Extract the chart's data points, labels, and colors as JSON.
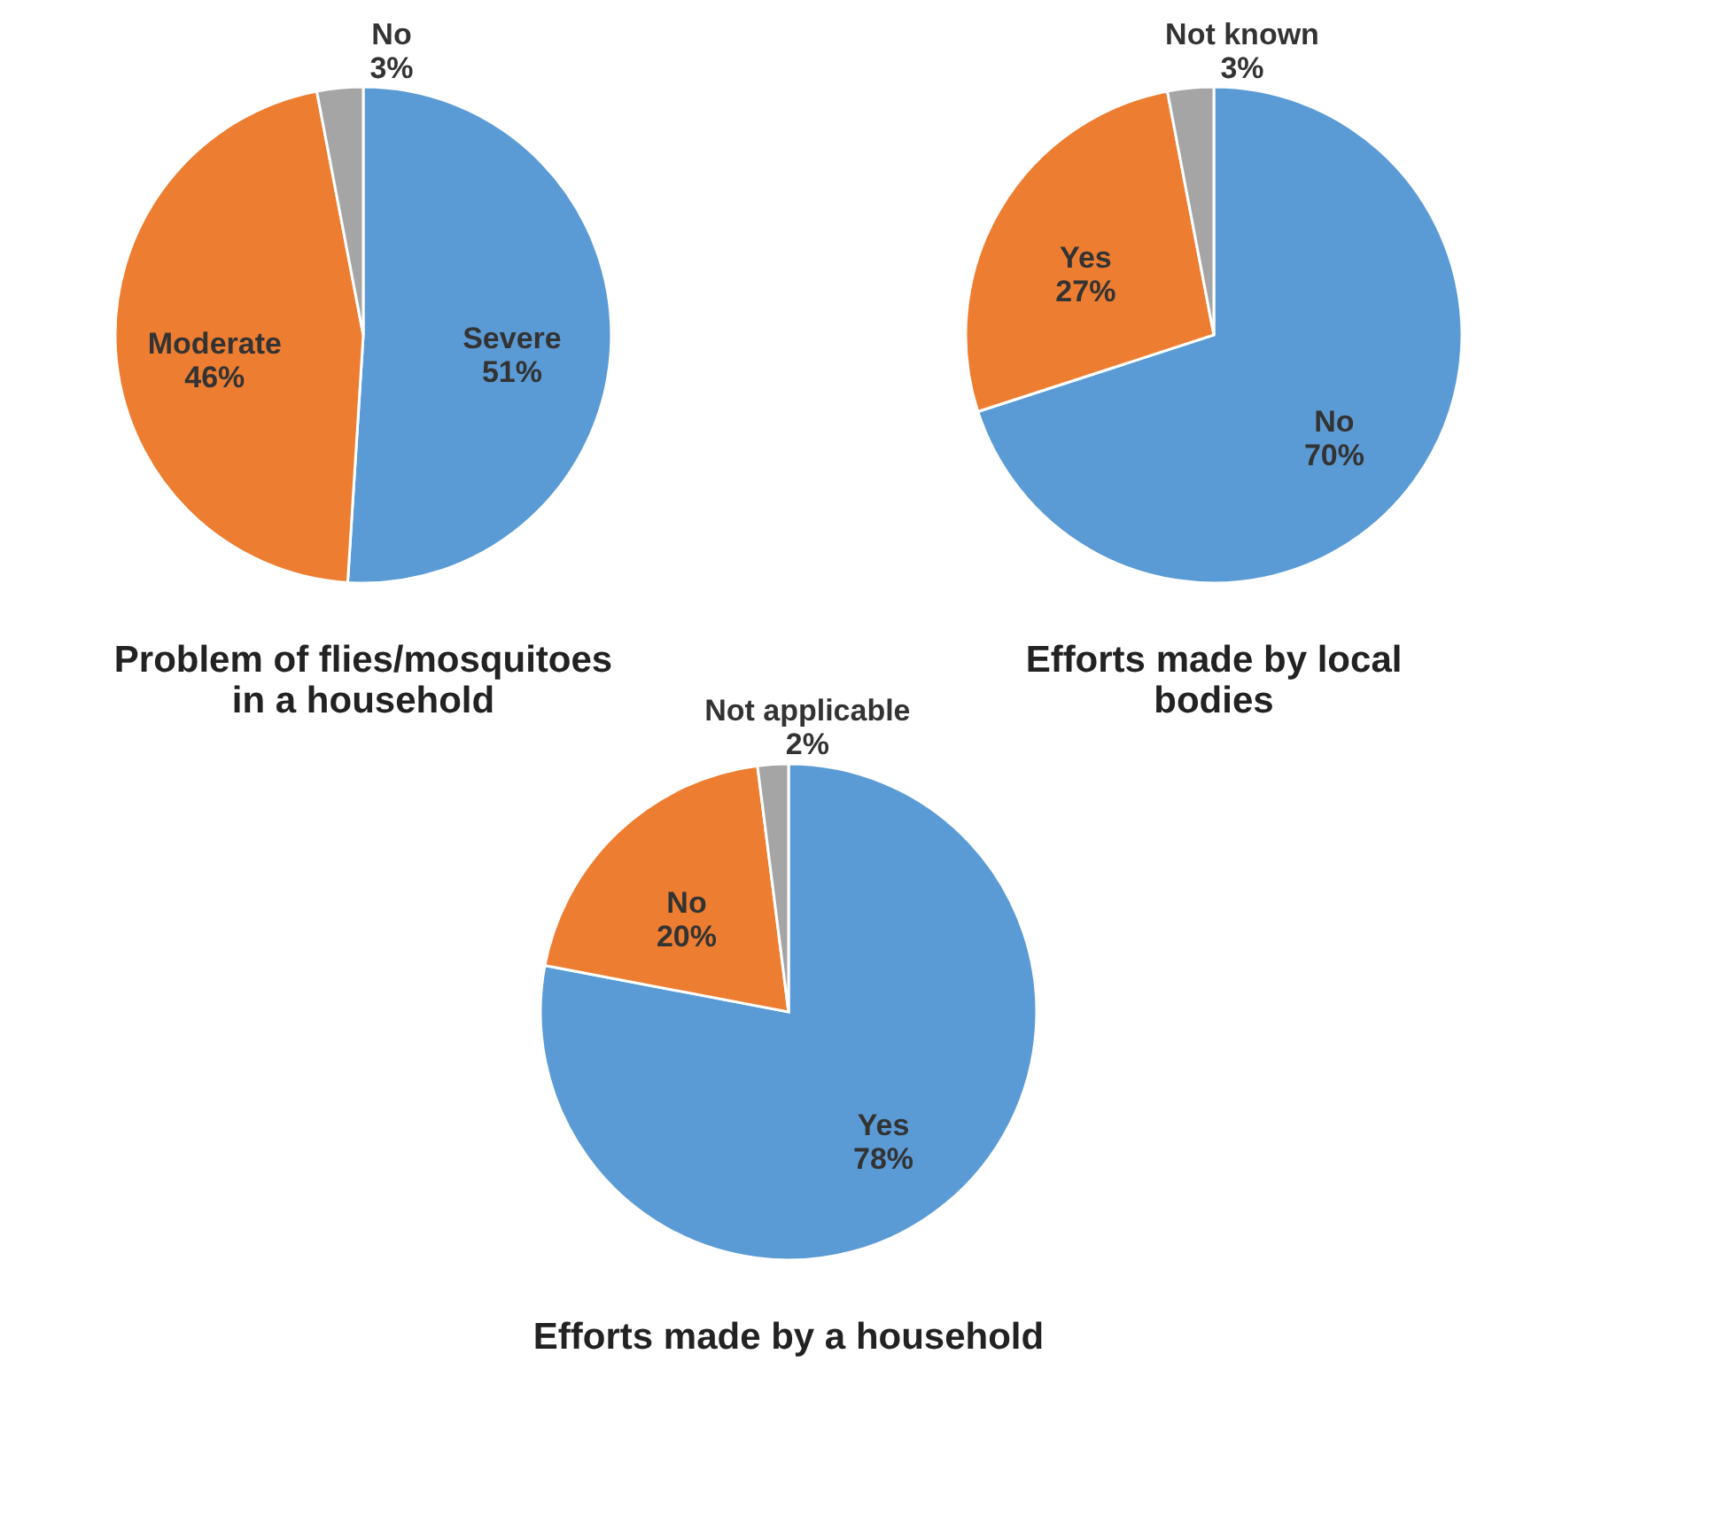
{
  "chart_data": [
    {
      "type": "pie",
      "title": [
        "Problem of flies/mosquitoes",
        "in a household"
      ],
      "categories": [
        "Severe",
        "Moderate",
        "No"
      ],
      "values": [
        51,
        46,
        3
      ],
      "colors": [
        "#5b9bd5",
        "#ed7d31",
        "#a5a5a5"
      ],
      "value_labels": [
        "51%",
        "46%",
        "3%"
      ],
      "legend": false
    },
    {
      "type": "pie",
      "title": [
        "Efforts made by local",
        "bodies"
      ],
      "categories": [
        "No",
        "Yes",
        "Not known"
      ],
      "values": [
        70,
        27,
        3
      ],
      "colors": [
        "#5b9bd5",
        "#ed7d31",
        "#a5a5a5"
      ],
      "value_labels": [
        "70%",
        "27%",
        "3%"
      ],
      "legend": false
    },
    {
      "type": "pie",
      "title": "Efforts made by a household",
      "categories": [
        "Yes",
        "No",
        "Not applicable"
      ],
      "values": [
        78,
        20,
        2
      ],
      "colors": [
        "#5b9bd5",
        "#ed7d31",
        "#a5a5a5"
      ],
      "value_labels": [
        "78%",
        "20%",
        "2%"
      ],
      "legend": false
    }
  ]
}
